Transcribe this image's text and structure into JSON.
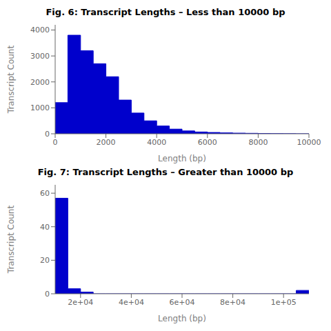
{
  "chart_data": [
    {
      "type": "histogram",
      "title": "Fig. 6: Transcript Lengths – Less than 10000 bp",
      "x_label": "Length (bp)",
      "y_label": "Transcript Count",
      "color": "#0000CC",
      "bins": [
        0,
        500,
        1000,
        1500,
        2000,
        2500,
        3000,
        3500,
        4000,
        4500,
        5000,
        5500,
        6000,
        6500,
        7000,
        7500,
        8000,
        8500,
        9000,
        9500,
        10000
      ],
      "values": [
        1200,
        3800,
        3200,
        2700,
        2200,
        1300,
        800,
        500,
        300,
        180,
        110,
        70,
        50,
        35,
        25,
        18,
        12,
        8,
        5,
        3
      ],
      "xlim": [
        0,
        10000
      ],
      "ylim": [
        0,
        4200
      ],
      "xticks": [
        0,
        2000,
        4000,
        6000,
        8000,
        10000
      ],
      "yticks": [
        0,
        1000,
        2000,
        3000,
        4000
      ],
      "grid": false
    },
    {
      "type": "histogram",
      "title": "Fig. 7: Transcript Lengths – Greater than 10000 bp",
      "x_label": "Length (bp)",
      "y_label": "Transcript Count",
      "color": "#0000CC",
      "bins": [
        10000,
        15000,
        20000,
        25000,
        30000,
        35000,
        40000,
        45000,
        50000,
        55000,
        60000,
        65000,
        70000,
        75000,
        80000,
        85000,
        90000,
        95000,
        100000,
        105000,
        110000
      ],
      "values": [
        57,
        3,
        1,
        0,
        0,
        0,
        0,
        0,
        0,
        0,
        0,
        0,
        0,
        0,
        0,
        0,
        0,
        0,
        0,
        2
      ],
      "xlim": [
        10000,
        110000
      ],
      "ylim": [
        0,
        65
      ],
      "xticks": [
        {
          "value": 20000,
          "label": "2e+04"
        },
        {
          "value": 40000,
          "label": "4e+04"
        },
        {
          "value": 60000,
          "label": "6e+04"
        },
        {
          "value": 80000,
          "label": "8e+04"
        },
        {
          "value": 100000,
          "label": "1e+05"
        }
      ],
      "yticks": [
        0,
        20,
        40,
        60
      ],
      "grid": false
    }
  ]
}
